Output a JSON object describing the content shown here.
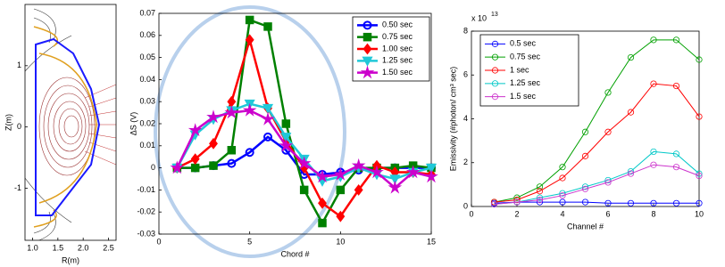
{
  "chart_data": [
    {
      "type": "equilibrium",
      "xlabel": "R(m)",
      "ylabel": "Z(m)",
      "xlim": [
        0.85,
        2.65
      ],
      "xticks": [
        {
          "value": 1,
          "label": "1.0"
        },
        1.5,
        {
          "value": 2,
          "label": "2.0"
        },
        2.5
      ],
      "ylim": [
        -1.85,
        2.0
      ],
      "yticks": [
        -1,
        0,
        1
      ]
    },
    {
      "type": "line",
      "xlabel": "Chord #",
      "ylabel": "ΔS (V)",
      "legend": "upper right",
      "xlim": [
        0,
        15
      ],
      "xticks": [
        0,
        5,
        10,
        15
      ],
      "ylim": [
        -0.03,
        0.07
      ],
      "yticks": [
        -0.03,
        -0.02,
        -0.01,
        0,
        0.01,
        0.02,
        0.03,
        0.04,
        0.05,
        0.06,
        0.07
      ],
      "x": [
        1,
        2,
        3,
        4,
        5,
        6,
        7,
        8,
        9,
        10,
        11,
        12,
        13,
        14,
        15
      ],
      "series": [
        {
          "name": "0.50 sec",
          "color": "#0000ff",
          "marker": "circle",
          "values": [
            0,
            0,
            0.001,
            0.002,
            0.007,
            0.014,
            0.008,
            -0.003,
            -0.003,
            -0.002,
            -0.001,
            0,
            0,
            0,
            0
          ]
        },
        {
          "name": "0.75 sec",
          "color": "#008000",
          "marker": "square",
          "values": [
            0,
            0,
            0.001,
            0.008,
            0.067,
            0.064,
            0.02,
            -0.01,
            -0.025,
            -0.01,
            0,
            0,
            0,
            0.001,
            0
          ]
        },
        {
          "name": "1.00 sec",
          "color": "#ff0000",
          "marker": "diamond",
          "values": [
            0,
            0.004,
            0.011,
            0.03,
            0.058,
            0.027,
            0.012,
            0,
            -0.016,
            -0.022,
            -0.01,
            0.001,
            -0.002,
            -0.002,
            -0.003
          ]
        },
        {
          "name": "1.25 sec",
          "color": "#20c8d8",
          "marker": "triangle-down",
          "values": [
            0,
            0.015,
            0.022,
            0.026,
            0.029,
            0.027,
            0.014,
            0.004,
            -0.006,
            -0.004,
            0,
            -0.003,
            -0.005,
            -0.002,
            0
          ]
        },
        {
          "name": "1.50 sec",
          "color": "#cc00cc",
          "marker": "star",
          "values": [
            0,
            0.017,
            0.023,
            0.025,
            0.026,
            0.022,
            0.01,
            0.002,
            -0.004,
            -0.003,
            0.001,
            -0.002,
            -0.009,
            -0.002,
            -0.004
          ]
        }
      ]
    },
    {
      "type": "line",
      "xlabel": "Channel #",
      "ylabel": "Emissivity (#photon/ cm³ sec)",
      "y_multiplier": "x 10",
      "y_multiplier_exponent": "13",
      "legend": "upper left",
      "xlim": [
        0,
        10
      ],
      "xticks": [
        0,
        2,
        4,
        6,
        8,
        10
      ],
      "ylim": [
        0,
        8
      ],
      "yticks": [
        0,
        2,
        4,
        6,
        8
      ],
      "x": [
        1,
        2,
        3,
        4,
        5,
        6,
        7,
        8,
        9,
        10
      ],
      "series": [
        {
          "name": "0.5 sec",
          "color": "#0000ff",
          "marker": "open-circle",
          "values": [
            0.15,
            0.2,
            0.2,
            0.2,
            0.2,
            0.15,
            0.15,
            0.15,
            0.15,
            0.15
          ]
        },
        {
          "name": "0.75 sec",
          "color": "#00a000",
          "marker": "open-circle",
          "values": [
            0.2,
            0.4,
            0.9,
            1.8,
            3.4,
            5.2,
            6.8,
            7.6,
            7.6,
            6.7
          ]
        },
        {
          "name": "1 sec",
          "color": "#ff0000",
          "marker": "open-circle",
          "values": [
            0.2,
            0.3,
            0.7,
            1.3,
            2.3,
            3.4,
            4.3,
            5.6,
            5.5,
            4.1
          ]
        },
        {
          "name": "1.25 sec",
          "color": "#00c8c8",
          "marker": "open-circle",
          "values": [
            0.1,
            0.2,
            0.4,
            0.6,
            0.9,
            1.2,
            1.6,
            2.5,
            2.4,
            1.5
          ]
        },
        {
          "name": "1.5 sec",
          "color": "#cc33cc",
          "marker": "open-circle",
          "values": [
            0.1,
            0.2,
            0.3,
            0.5,
            0.8,
            1.1,
            1.5,
            1.9,
            1.8,
            1.4
          ]
        }
      ]
    }
  ]
}
